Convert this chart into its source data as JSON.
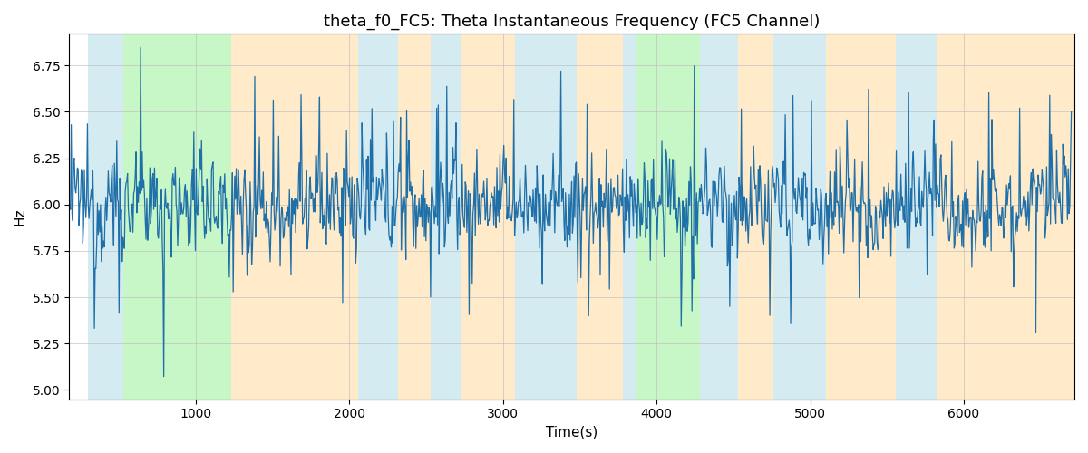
{
  "title": "theta_f0_FC5: Theta Instantaneous Frequency (FC5 Channel)",
  "xlabel": "Time(s)",
  "ylabel": "Hz",
  "ylim": [
    4.95,
    6.92
  ],
  "xlim": [
    175,
    6720
  ],
  "seed": 12345,
  "n_points": 1300,
  "x_start": 180,
  "x_end": 6700,
  "mean_freq": 6.0,
  "noise_std": 0.13,
  "spike_std": 0.4,
  "bg_bands": [
    {
      "xmin": 300,
      "xmax": 530,
      "color": "#add8e6",
      "alpha": 0.5
    },
    {
      "xmin": 530,
      "xmax": 1230,
      "color": "#90ee90",
      "alpha": 0.5
    },
    {
      "xmin": 1230,
      "xmax": 2060,
      "color": "#ffd9a0",
      "alpha": 0.55
    },
    {
      "xmin": 2060,
      "xmax": 2320,
      "color": "#add8e6",
      "alpha": 0.5
    },
    {
      "xmin": 2320,
      "xmax": 2530,
      "color": "#ffd9a0",
      "alpha": 0.55
    },
    {
      "xmin": 2530,
      "xmax": 2730,
      "color": "#add8e6",
      "alpha": 0.5
    },
    {
      "xmin": 2730,
      "xmax": 3080,
      "color": "#ffd9a0",
      "alpha": 0.55
    },
    {
      "xmin": 3080,
      "xmax": 3480,
      "color": "#add8e6",
      "alpha": 0.5
    },
    {
      "xmin": 3480,
      "xmax": 3780,
      "color": "#ffd9a0",
      "alpha": 0.55
    },
    {
      "xmin": 3780,
      "xmax": 3870,
      "color": "#add8e6",
      "alpha": 0.5
    },
    {
      "xmin": 3870,
      "xmax": 4280,
      "color": "#90ee90",
      "alpha": 0.5
    },
    {
      "xmin": 4280,
      "xmax": 4530,
      "color": "#add8e6",
      "alpha": 0.5
    },
    {
      "xmin": 4530,
      "xmax": 4760,
      "color": "#ffd9a0",
      "alpha": 0.55
    },
    {
      "xmin": 4760,
      "xmax": 5100,
      "color": "#add8e6",
      "alpha": 0.5
    },
    {
      "xmin": 5100,
      "xmax": 5560,
      "color": "#ffd9a0",
      "alpha": 0.55
    },
    {
      "xmin": 5560,
      "xmax": 5830,
      "color": "#add8e6",
      "alpha": 0.5
    },
    {
      "xmin": 5830,
      "xmax": 6720,
      "color": "#ffd9a0",
      "alpha": 0.55
    }
  ],
  "line_color": "#1f6fa8",
  "line_width": 0.9,
  "title_fontsize": 13,
  "label_fontsize": 11,
  "tick_fontsize": 10,
  "grid_color": "#bbbbbb",
  "grid_alpha": 0.6,
  "figsize": [
    12,
    5
  ],
  "dpi": 100
}
